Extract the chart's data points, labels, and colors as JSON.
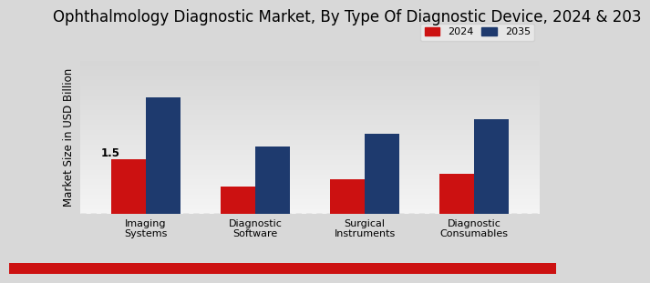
{
  "title": "Ophthalmology Diagnostic Market, By Type Of Diagnostic Device, 2024 & 203",
  "ylabel": "Market Size in USD Billion",
  "categories": [
    "Imaging\nSystems",
    "Diagnostic\nSoftware",
    "Surgical\nInstruments",
    "Diagnostic\nConsumables"
  ],
  "values_2024": [
    1.5,
    0.75,
    0.95,
    1.1
  ],
  "values_2035": [
    3.2,
    1.85,
    2.2,
    2.6
  ],
  "color_2024": "#cc1111",
  "color_2035": "#1e3a6e",
  "annotation_text": "1.5",
  "background_color_top": "#d8d8d8",
  "background_color_bottom": "#f5f5f5",
  "bar_width": 0.32,
  "legend_labels": [
    "2024",
    "2035"
  ],
  "title_fontsize": 12,
  "label_fontsize": 8.5,
  "tick_fontsize": 8,
  "legend_fontsize": 8,
  "footer_color": "#cc1111",
  "ylim_max": 4.2
}
